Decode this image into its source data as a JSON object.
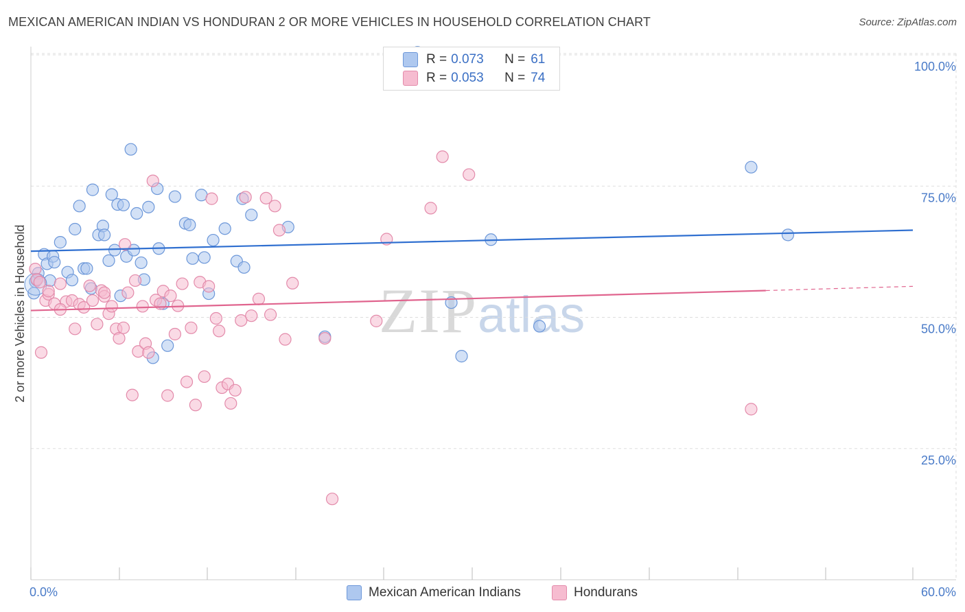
{
  "title": "MEXICAN AMERICAN INDIAN VS HONDURAN 2 OR MORE VEHICLES IN HOUSEHOLD CORRELATION CHART",
  "source": "Source: ZipAtlas.com",
  "watermark": {
    "zip": "ZIP",
    "atlas": "atlas"
  },
  "legend": {
    "row1": {
      "r_label": "R = ",
      "r_value": "0.073",
      "n_label": "N = ",
      "n_value": "61"
    },
    "row2": {
      "r_label": "R = ",
      "r_value": "0.053",
      "n_label": "N = ",
      "n_value": "74"
    }
  },
  "colors": {
    "blue_fill": "#aec8ef",
    "blue_stroke": "#6c97d9",
    "blue_line": "#2f6fd0",
    "pink_fill": "#f6bcd0",
    "pink_stroke": "#e38aaa",
    "pink_line": "#e0648e",
    "grid": "#dddddd",
    "axis_text": "#4a7bc8"
  },
  "chart_data": {
    "type": "scatter",
    "title": "MEXICAN AMERICAN INDIAN VS HONDURAN 2 OR MORE VEHICLES IN HOUSEHOLD CORRELATION CHART",
    "xlabel": "",
    "ylabel": "2 or more Vehicles in Household",
    "xlim": [
      0,
      60
    ],
    "ylim": [
      0,
      105
    ],
    "x_tick_labels": [
      "0.0%",
      "60.0%"
    ],
    "y_ticks": [
      25,
      50,
      75,
      100
    ],
    "y_tick_labels": [
      "25.0%",
      "50.0%",
      "75.0%",
      "100.0%"
    ],
    "grid": true,
    "legend_position": "top-center",
    "series": [
      {
        "name": "Mexican American Indians",
        "color": "#aec8ef",
        "trend": {
          "x": [
            0,
            60
          ],
          "y": [
            62.6,
            66.6
          ]
        },
        "points": [
          [
            0.3,
            56.8
          ],
          [
            0.4,
            57.1
          ],
          [
            0.5,
            58.4
          ],
          [
            0.9,
            62.0
          ],
          [
            1.1,
            60.2
          ],
          [
            1.3,
            57.0
          ],
          [
            1.5,
            61.6
          ],
          [
            1.6,
            60.5
          ],
          [
            2.0,
            64.3
          ],
          [
            2.5,
            58.6
          ],
          [
            2.8,
            57.1
          ],
          [
            3.0,
            66.8
          ],
          [
            3.3,
            71.2
          ],
          [
            3.6,
            59.3
          ],
          [
            3.8,
            59.3
          ],
          [
            4.1,
            55.5
          ],
          [
            4.2,
            74.3
          ],
          [
            4.6,
            65.7
          ],
          [
            4.9,
            67.4
          ],
          [
            5.0,
            65.7
          ],
          [
            5.3,
            60.8
          ],
          [
            5.5,
            73.4
          ],
          [
            5.7,
            62.8
          ],
          [
            5.9,
            71.5
          ],
          [
            6.1,
            54.1
          ],
          [
            6.3,
            71.4
          ],
          [
            6.5,
            61.6
          ],
          [
            6.8,
            82.0
          ],
          [
            7.0,
            62.8
          ],
          [
            7.2,
            69.8
          ],
          [
            7.5,
            60.4
          ],
          [
            7.7,
            57.2
          ],
          [
            8.0,
            71.0
          ],
          [
            8.3,
            42.3
          ],
          [
            8.6,
            74.5
          ],
          [
            8.7,
            63.1
          ],
          [
            9.0,
            52.6
          ],
          [
            9.3,
            44.6
          ],
          [
            9.8,
            73.0
          ],
          [
            10.5,
            67.9
          ],
          [
            10.8,
            67.6
          ],
          [
            11.0,
            61.2
          ],
          [
            11.6,
            73.3
          ],
          [
            11.8,
            61.4
          ],
          [
            12.1,
            54.5
          ],
          [
            12.4,
            64.7
          ],
          [
            13.2,
            66.9
          ],
          [
            14.0,
            60.7
          ],
          [
            14.4,
            72.6
          ],
          [
            14.5,
            59.5
          ],
          [
            15.0,
            69.5
          ],
          [
            17.5,
            67.2
          ],
          [
            20.0,
            46.3
          ],
          [
            26.3,
            100.5
          ],
          [
            28.6,
            52.8
          ],
          [
            29.3,
            42.6
          ],
          [
            31.3,
            64.8
          ],
          [
            34.6,
            48.3
          ],
          [
            49.0,
            78.6
          ],
          [
            51.5,
            65.7
          ],
          [
            0.2,
            54.6
          ]
        ]
      },
      {
        "name": "Hondurans",
        "color": "#f6bcd0",
        "trend": {
          "x": [
            0,
            50
          ],
          "y": [
            51.3,
            55.1
          ]
        },
        "trend_ext": {
          "x": [
            50,
            60
          ],
          "y": [
            55.1,
            55.9
          ]
        },
        "points": [
          [
            0.3,
            59.2
          ],
          [
            0.4,
            57.2
          ],
          [
            0.6,
            56.7
          ],
          [
            0.7,
            43.3
          ],
          [
            1.0,
            53.2
          ],
          [
            1.2,
            54.4
          ],
          [
            1.6,
            52.6
          ],
          [
            2.0,
            56.4
          ],
          [
            2.4,
            53.0
          ],
          [
            2.8,
            53.2
          ],
          [
            3.0,
            47.8
          ],
          [
            3.3,
            52.5
          ],
          [
            3.6,
            51.9
          ],
          [
            4.0,
            56.0
          ],
          [
            4.2,
            53.2
          ],
          [
            4.5,
            48.7
          ],
          [
            4.8,
            55.1
          ],
          [
            5.0,
            54.0
          ],
          [
            5.3,
            50.7
          ],
          [
            5.5,
            52.1
          ],
          [
            5.8,
            47.8
          ],
          [
            6.0,
            46.0
          ],
          [
            6.3,
            48.0
          ],
          [
            6.4,
            63.9
          ],
          [
            6.6,
            54.7
          ],
          [
            6.9,
            35.2
          ],
          [
            7.1,
            57.0
          ],
          [
            7.3,
            43.5
          ],
          [
            7.6,
            52.1
          ],
          [
            7.8,
            45.0
          ],
          [
            8.0,
            43.3
          ],
          [
            8.3,
            76.0
          ],
          [
            8.5,
            53.3
          ],
          [
            8.8,
            52.6
          ],
          [
            9.0,
            55.0
          ],
          [
            9.3,
            35.1
          ],
          [
            9.5,
            54.1
          ],
          [
            9.8,
            46.8
          ],
          [
            10.0,
            52.2
          ],
          [
            10.3,
            56.4
          ],
          [
            10.6,
            37.7
          ],
          [
            10.9,
            48.0
          ],
          [
            11.2,
            33.3
          ],
          [
            11.5,
            56.7
          ],
          [
            11.8,
            38.7
          ],
          [
            12.1,
            55.9
          ],
          [
            12.3,
            72.6
          ],
          [
            12.6,
            49.8
          ],
          [
            12.8,
            47.4
          ],
          [
            13.0,
            36.6
          ],
          [
            13.4,
            37.3
          ],
          [
            13.6,
            33.6
          ],
          [
            13.9,
            36.1
          ],
          [
            14.3,
            49.4
          ],
          [
            14.6,
            72.9
          ],
          [
            15.0,
            50.3
          ],
          [
            15.5,
            53.5
          ],
          [
            16.0,
            72.7
          ],
          [
            16.3,
            50.5
          ],
          [
            16.6,
            71.2
          ],
          [
            16.9,
            66.6
          ],
          [
            17.3,
            45.8
          ],
          [
            17.8,
            56.5
          ],
          [
            20.0,
            46.0
          ],
          [
            20.5,
            15.4
          ],
          [
            23.5,
            49.3
          ],
          [
            24.2,
            64.9
          ],
          [
            27.2,
            70.8
          ],
          [
            28.0,
            80.6
          ],
          [
            29.8,
            77.2
          ],
          [
            49.0,
            32.5
          ],
          [
            1.2,
            55.0
          ],
          [
            2.0,
            51.5
          ],
          [
            5.0,
            54.7
          ]
        ]
      }
    ]
  }
}
